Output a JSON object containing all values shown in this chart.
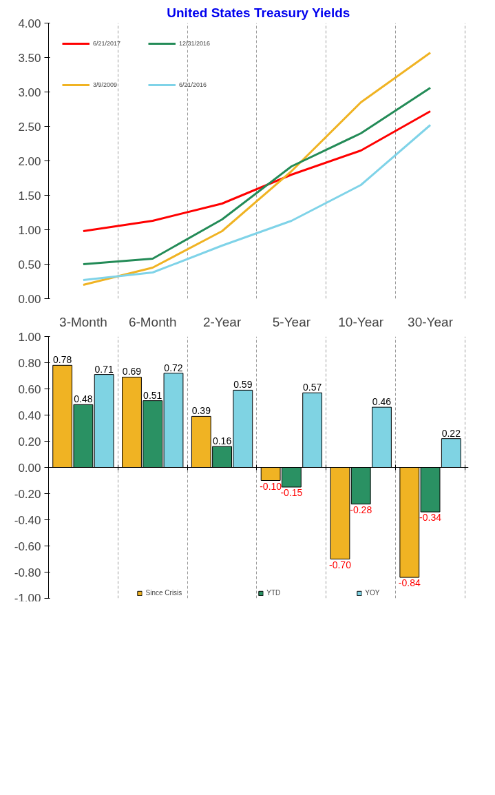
{
  "chart_data": [
    {
      "type": "line",
      "title": "United States Treasury Yields",
      "categories": [
        null,
        null,
        null,
        null,
        null,
        null
      ],
      "ylim": [
        0,
        4
      ],
      "yticks": [
        {
          "value": 0,
          "label": "0.00"
        },
        {
          "value": 0.5,
          "label": "0.50"
        },
        {
          "value": 1,
          "label": "1.00"
        },
        {
          "value": 1.5,
          "label": "1.50"
        },
        {
          "value": 2,
          "label": "2.00"
        },
        {
          "value": 2.5,
          "label": "2.50"
        },
        {
          "value": 3,
          "label": "3.00"
        },
        {
          "value": 3.5,
          "label": "3.50"
        },
        {
          "value": 4,
          "label": "4.00"
        }
      ],
      "grid": "x",
      "legend": "top left",
      "line_style": "solid",
      "marker": "none",
      "series": [
        {
          "name": "6/21/2017",
          "color": "#ff0000",
          "values": [
            0.98,
            1.13,
            1.38,
            1.8,
            2.15,
            2.72
          ]
        },
        {
          "name": "3/9/2009",
          "color": "#f0b323",
          "values": [
            0.2,
            0.45,
            0.98,
            1.85,
            2.85,
            3.57
          ]
        },
        {
          "name": "12/31/2016",
          "color": "#238b57",
          "values": [
            0.5,
            0.58,
            1.15,
            1.92,
            2.4,
            3.06
          ]
        },
        {
          "name": "6/21/2016",
          "color": "#7fd3e8",
          "values": [
            0.27,
            0.38,
            0.77,
            1.13,
            1.65,
            2.52
          ]
        }
      ]
    },
    {
      "type": "bar",
      "categories": [
        "3-Month",
        "6-Month",
        "2-Year",
        "5-Year",
        "10-Year",
        "30-Year"
      ],
      "ylim": [
        -1,
        1
      ],
      "yticks": [
        {
          "value": -1,
          "label": "-1.00"
        },
        {
          "value": -0.8,
          "label": "-0.80"
        },
        {
          "value": -0.6,
          "label": "-0.60"
        },
        {
          "value": -0.4,
          "label": "-0.40"
        },
        {
          "value": -0.2,
          "label": "-0.20"
        },
        {
          "value": 0,
          "label": "0.00"
        },
        {
          "value": 0.2,
          "label": "0.20"
        },
        {
          "value": 0.4,
          "label": "0.40"
        },
        {
          "value": 0.6,
          "label": "0.60"
        },
        {
          "value": 0.8,
          "label": "0.80"
        },
        {
          "value": 1,
          "label": "1.00"
        }
      ],
      "grid": "x",
      "legend": "bottom",
      "series": [
        {
          "name": "Since Crisis",
          "color": "#f0b323",
          "values": [
            0.78,
            0.69,
            0.39,
            -0.1,
            -0.7,
            -0.84
          ],
          "value_labels": [
            "0.78",
            "0.69",
            "0.39",
            "-0.10",
            "-0.70",
            "-0.84"
          ]
        },
        {
          "name": "YTD",
          "color": "#2a9163",
          "values": [
            0.48,
            0.51,
            0.16,
            -0.15,
            -0.28,
            -0.34
          ],
          "value_labels": [
            "0.48",
            "0.51",
            "0.16",
            "-0.15",
            "-0.28",
            "-0.34"
          ]
        },
        {
          "name": "YOY",
          "color": "#7fd3e3",
          "values": [
            0.71,
            0.72,
            0.59,
            0.57,
            0.46,
            0.22
          ],
          "value_labels": [
            "0.71",
            "0.72",
            "0.59",
            "0.57",
            "0.46",
            "0.22"
          ]
        }
      ]
    }
  ]
}
